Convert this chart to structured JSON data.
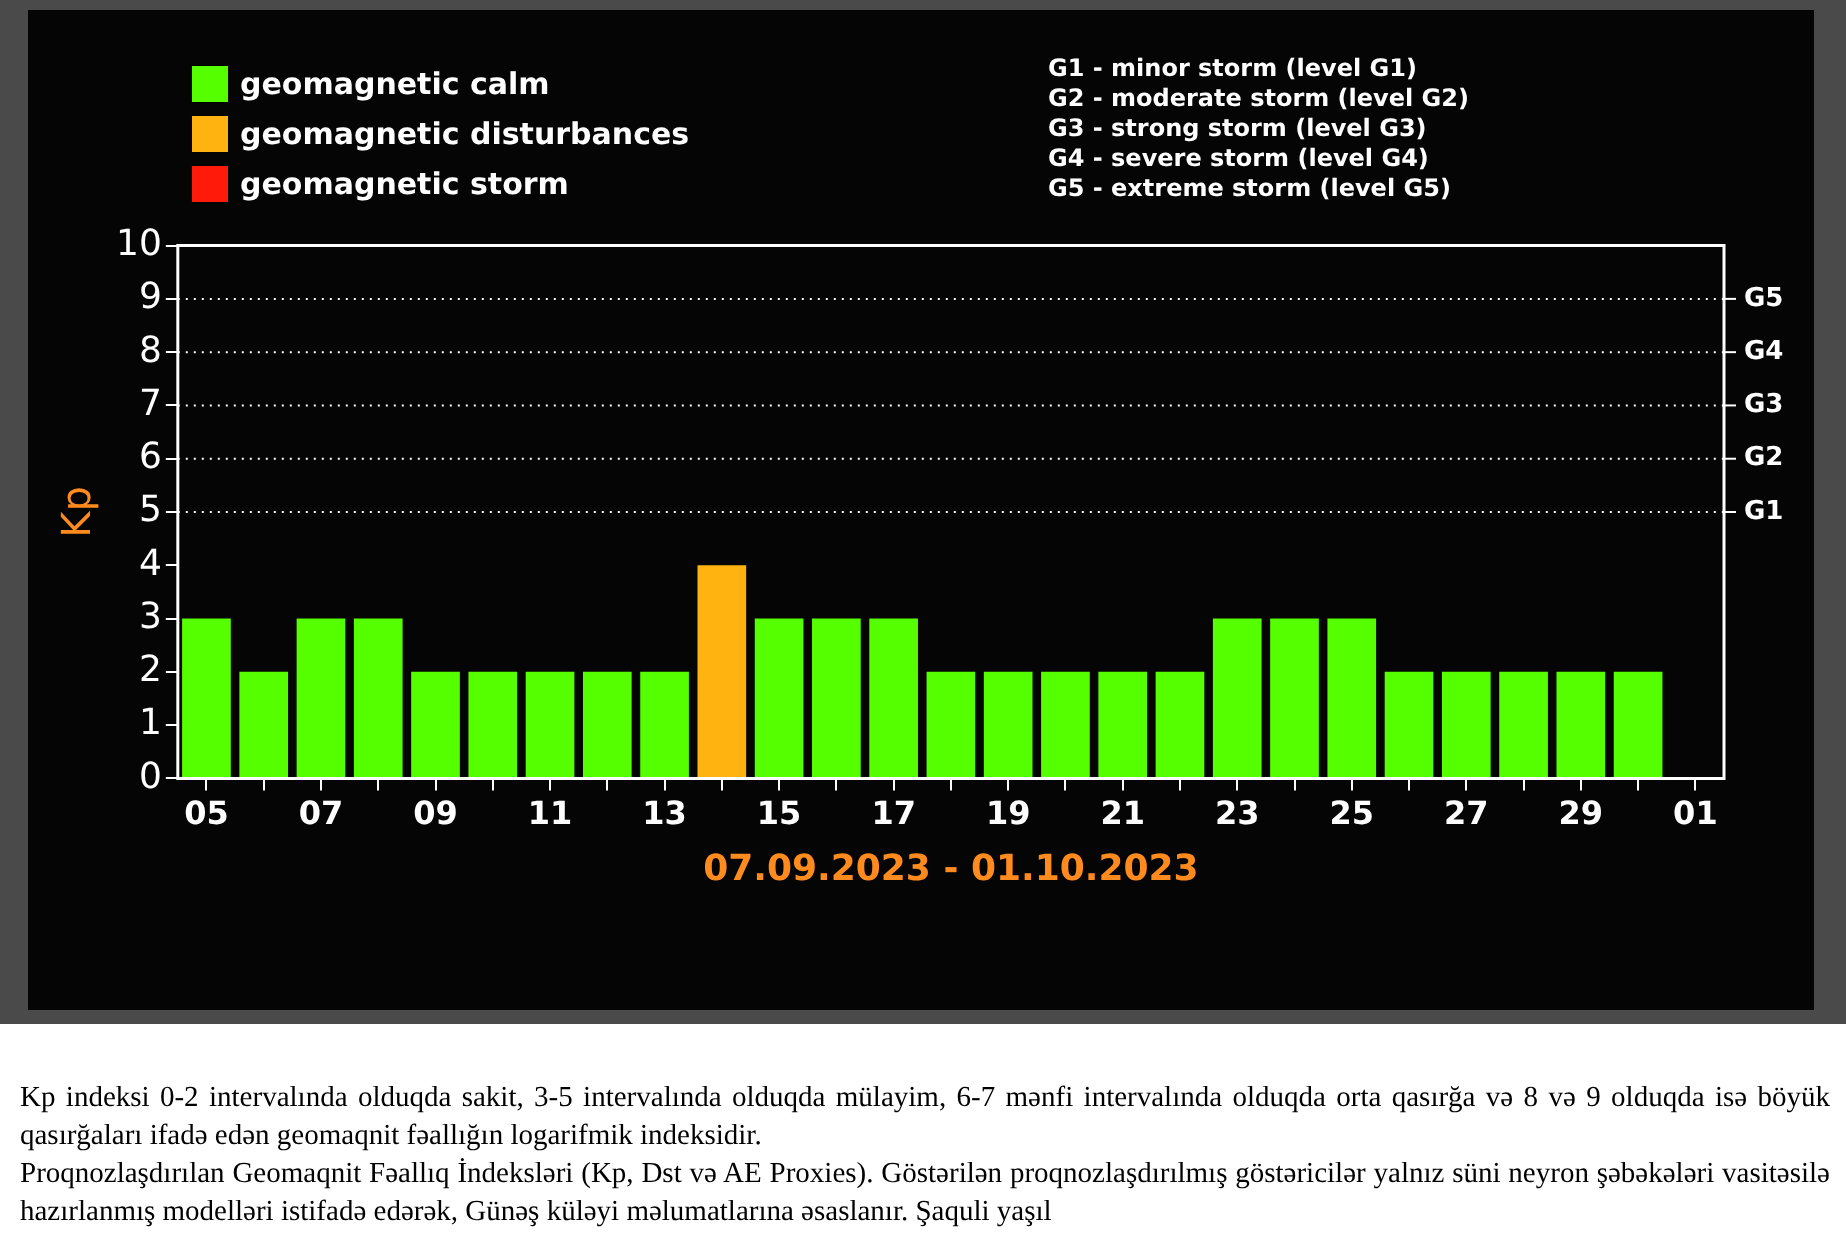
{
  "chart_data": {
    "type": "bar",
    "stacked": true,
    "categories": [
      "05",
      null,
      "07",
      null,
      "09",
      null,
      "11",
      null,
      "13",
      null,
      "15",
      null,
      "17",
      null,
      "19",
      null,
      "21",
      null,
      "23",
      null,
      "25",
      null,
      "27",
      null,
      "29",
      null,
      "01"
    ],
    "series": [
      {
        "name": "geomagnetic calm",
        "color": "#55ff00",
        "values": [
          3,
          2,
          3,
          3,
          2,
          2,
          2,
          2,
          2,
          null,
          3,
          3,
          3,
          2,
          2,
          2,
          2,
          2,
          3,
          3,
          3,
          2,
          2,
          2,
          2,
          2,
          null
        ]
      },
      {
        "name": "geomagnetic disturbances",
        "color": "#ffb310",
        "values": [
          null,
          null,
          null,
          null,
          null,
          null,
          null,
          null,
          null,
          4,
          null,
          null,
          null,
          null,
          null,
          null,
          null,
          null,
          null,
          null,
          null,
          null,
          null,
          null,
          null,
          null,
          null
        ]
      },
      {
        "name": "geomagnetic storm",
        "color": "#ff1a0a",
        "values": [
          null,
          null,
          null,
          null,
          null,
          null,
          null,
          null,
          null,
          null,
          null,
          null,
          null,
          null,
          null,
          null,
          null,
          null,
          null,
          null,
          null,
          null,
          null,
          null,
          null,
          null,
          null
        ]
      }
    ],
    "xlabel": "07.09.2023 - 01.10.2023",
    "ylabel": "Kp",
    "ylim": [
      0,
      10
    ],
    "yticks": [
      0,
      1,
      2,
      3,
      4,
      5,
      6,
      7,
      8,
      9,
      10
    ],
    "ref_lines": [
      {
        "axis": "y",
        "value": 5,
        "label": "G1",
        "color": "#ffffff",
        "line_style": "dotted"
      },
      {
        "axis": "y",
        "value": 6,
        "label": "G2",
        "color": "#ffffff",
        "line_style": "dotted"
      },
      {
        "axis": "y",
        "value": 7,
        "label": "G3",
        "color": "#ffffff",
        "line_style": "dotted"
      },
      {
        "axis": "y",
        "value": 8,
        "label": "G4",
        "color": "#ffffff",
        "line_style": "dotted"
      },
      {
        "axis": "y",
        "value": 9,
        "label": "G5",
        "color": "#ffffff",
        "line_style": "dotted"
      }
    ],
    "grid": false,
    "legend": "top left",
    "annotations": [
      "G1 - minor storm (level G1)",
      "G2 - moderate storm (level G2)",
      "G3 - strong storm (level G3)",
      "G4 - severe storm (level G4)",
      "G5 - extreme storm (level G5)",
      "Kp indeksi 0-2 intervalında olduqda sakit, 3-5 intervalında olduqda mülayim, 6-7 mənfi intervalında olduqda orta qasırğa və 8 və 9 olduqda isə böyük qasırğaları ifadə edən geomaqnit fəallığın logarifmik indeksidir.",
      "Proqnozlaşdırılan Geomaqnit Fəallıq İndeksləri (Kp, Dst və AE Proxies). Göstərilən proqnozlaşdırılmış göstəricilər yalnız süni neyron şəbəkələri vasitəsilə hazırlanmış modelləri istifadə edərək, Günəş küləyi məlumatlarına əsaslanır. Şaquli yaşıl"
    ]
  }
}
